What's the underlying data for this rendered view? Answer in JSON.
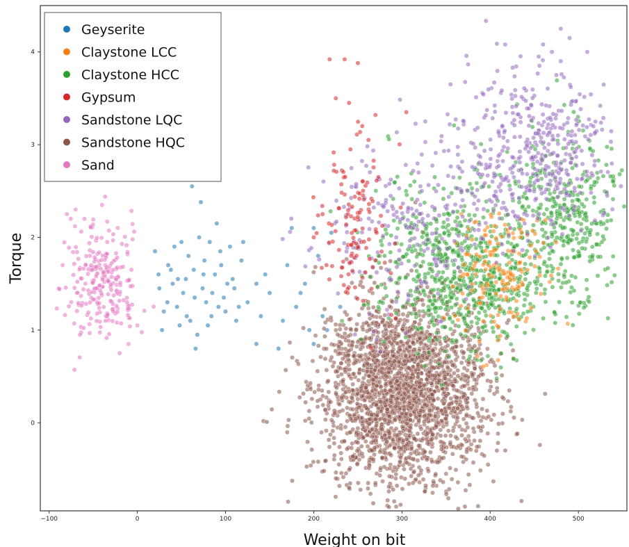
{
  "chart_data": {
    "type": "scatter",
    "title": "",
    "xlabel": "Weight on bit",
    "ylabel": "Torque",
    "xlim": [
      -110,
      555
    ],
    "ylim": [
      -0.95,
      4.5
    ],
    "xticks": [
      -100,
      0,
      100,
      200,
      300,
      400,
      500
    ],
    "yticks": [
      0,
      1,
      2,
      3,
      4
    ],
    "grid": false,
    "legend_position": "top-left",
    "marker_alpha": 0.55,
    "series": [
      {
        "name": "Geyserite",
        "color": "#1f77b4",
        "points": [
          [
            20,
            1.85
          ],
          [
            25,
            1.45
          ],
          [
            30,
            1.2
          ],
          [
            35,
            1.7
          ],
          [
            40,
            1.5
          ],
          [
            45,
            1.25
          ],
          [
            50,
            1.95
          ],
          [
            55,
            1.55
          ],
          [
            60,
            1.1
          ],
          [
            62,
            2.55
          ],
          [
            65,
            1.35
          ],
          [
            70,
            2.0
          ],
          [
            72,
            2.38
          ],
          [
            75,
            1.6
          ],
          [
            80,
            1.05
          ],
          [
            85,
            1.4
          ],
          [
            90,
            2.15
          ],
          [
            95,
            1.7
          ],
          [
            100,
            1.2
          ],
          [
            105,
            1.9
          ],
          [
            110,
            1.45
          ],
          [
            115,
            1.25
          ],
          [
            120,
            1.95
          ],
          [
            135,
            1.5
          ],
          [
            135,
            0.85
          ],
          [
            140,
            1.15
          ],
          [
            150,
            1.4
          ],
          [
            160,
            0.8
          ],
          [
            165,
            1.1
          ],
          [
            170,
            1.7
          ],
          [
            175,
            2.1
          ],
          [
            180,
            1.25
          ],
          [
            190,
            1.5
          ],
          [
            200,
            2.1
          ],
          [
            200,
            0.85
          ],
          [
            205,
            1.8
          ],
          [
            210,
            1.15
          ],
          [
            215,
            1.0
          ],
          [
            220,
            2.05
          ],
          [
            230,
            1.25
          ],
          [
            38,
            1.65
          ],
          [
            48,
            1.05
          ],
          [
            58,
            1.8
          ],
          [
            68,
            0.95
          ],
          [
            78,
            1.3
          ],
          [
            88,
            1.6
          ],
          [
            98,
            1.35
          ],
          [
            108,
            1.55
          ],
          [
            28,
            1.0
          ],
          [
            42,
            1.9
          ],
          [
            52,
            1.4
          ],
          [
            66,
            0.8
          ],
          [
            76,
            1.75
          ],
          [
            84,
            1.15
          ],
          [
            94,
            1.85
          ],
          [
            112,
            1.1
          ],
          [
            125,
            1.3
          ],
          [
            145,
            1.6
          ],
          [
            185,
            1.4
          ],
          [
            195,
            1.0
          ],
          [
            24,
            1.6
          ],
          [
            34,
            1.3
          ],
          [
            46,
            1.55
          ],
          [
            56,
            1.15
          ],
          [
            64,
            1.65
          ],
          [
            74,
            1.45
          ],
          [
            82,
            1.95
          ],
          [
            92,
            1.25
          ],
          [
            102,
            1.5
          ],
          [
            118,
            1.75
          ]
        ]
      },
      {
        "name": "Claystone LCC",
        "color": "#ff7f0e",
        "gen": {
          "cx": 410,
          "cy": 1.6,
          "sx": 25,
          "sy": 0.35,
          "n": 170,
          "seed": 7
        }
      },
      {
        "name": "Claystone HCC",
        "color": "#2ca02c",
        "gen_multi": [
          {
            "cx": 375,
            "cy": 1.55,
            "sx": 45,
            "sy": 0.38,
            "n": 560,
            "seed": 11
          },
          {
            "cx": 485,
            "cy": 2.2,
            "sx": 32,
            "sy": 0.45,
            "n": 380,
            "seed": 13
          },
          {
            "cx": 345,
            "cy": 2.05,
            "sx": 40,
            "sy": 0.45,
            "n": 160,
            "seed": 15
          }
        ]
      },
      {
        "name": "Gypsum",
        "color": "#d62728",
        "gen": {
          "cx": 245,
          "cy": 2.05,
          "sx": 20,
          "sy": 0.45,
          "n": 120,
          "seed": 17
        },
        "points": [
          [
            218,
            3.92
          ],
          [
            235,
            3.92
          ],
          [
            250,
            3.88
          ],
          [
            225,
            3.5
          ],
          [
            240,
            3.45
          ],
          [
            262,
            3.05
          ],
          [
            270,
            3.32
          ],
          [
            305,
            3.35
          ],
          [
            255,
            3.2
          ],
          [
            200,
            2.0
          ],
          [
            210,
            2.25
          ]
        ]
      },
      {
        "name": "Sandstone LQC",
        "color": "#9467bd",
        "gen_multi": [
          {
            "cx": 450,
            "cy": 2.9,
            "sx": 45,
            "sy": 0.45,
            "n": 430,
            "seed": 19
          },
          {
            "cx": 300,
            "cy": 2.1,
            "sx": 50,
            "sy": 0.45,
            "n": 220,
            "seed": 23
          }
        ],
        "points": [
          [
            460,
            4.08
          ],
          [
            470,
            4.0
          ],
          [
            480,
            4.25
          ],
          [
            490,
            4.15
          ],
          [
            510,
            4.0
          ],
          [
            455,
            3.95
          ],
          [
            475,
            3.75
          ],
          [
            355,
            3.65
          ],
          [
            480,
            3.9
          ]
        ]
      },
      {
        "name": "Sandstone HQC",
        "color": "#8c564b",
        "gen": {
          "cx": 300,
          "cy": 0.35,
          "sx": 48,
          "sy": 0.5,
          "n": 2300,
          "seed": 29
        },
        "points": [
          [
            240,
            -0.7
          ],
          [
            270,
            -0.65
          ],
          [
            290,
            -0.72
          ],
          [
            205,
            -0.42
          ],
          [
            225,
            -0.6
          ],
          [
            335,
            -0.68
          ],
          [
            350,
            -0.55
          ]
        ]
      },
      {
        "name": "Sand",
        "color": "#e377c2",
        "gen": {
          "cx": -42,
          "cy": 1.5,
          "sx": 22,
          "sy": 0.32,
          "n": 240,
          "seed": 31
        },
        "points": [
          [
            -80,
            2.25
          ],
          [
            -70,
            2.3
          ],
          [
            -40,
            2.35
          ],
          [
            -60,
            2.2
          ],
          [
            -20,
            0.75
          ],
          [
            -10,
            0.85
          ],
          [
            0,
            1.05
          ],
          [
            -65,
            0.95
          ]
        ]
      }
    ]
  }
}
